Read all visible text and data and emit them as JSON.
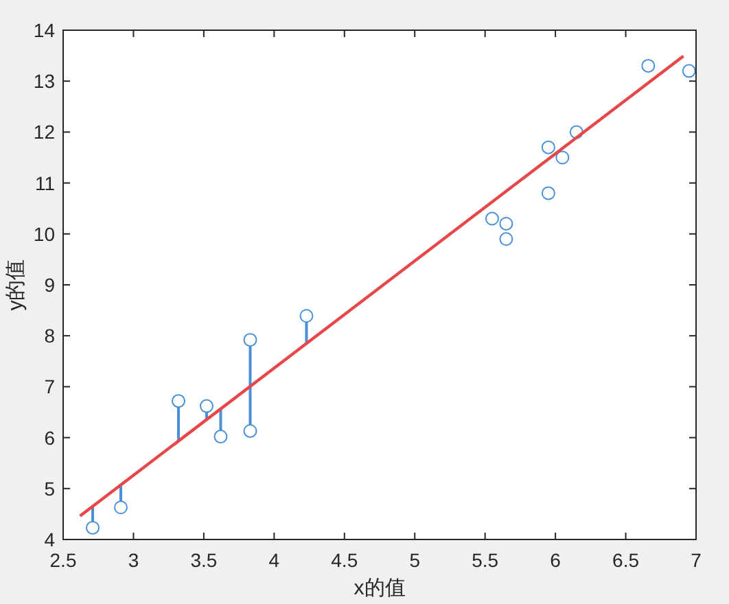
{
  "chart_data": {
    "type": "scatter",
    "xlabel": "x的值",
    "ylabel": "y的值",
    "xlim": [
      2.5,
      7
    ],
    "ylim": [
      4,
      14
    ],
    "xticks": [
      2.5,
      3,
      3.5,
      4,
      4.5,
      5,
      5.5,
      6,
      6.5,
      7
    ],
    "yticks": [
      4,
      5,
      6,
      7,
      8,
      9,
      10,
      11,
      12,
      13,
      14
    ],
    "series": [
      {
        "type": "scatter",
        "marker": "circle",
        "color": "#4a90d9",
        "x": [
          2.71,
          2.91,
          3.32,
          3.52,
          3.62,
          3.83,
          3.83,
          4.23,
          5.55,
          5.65,
          5.65,
          5.95,
          5.95,
          6.05,
          6.15,
          6.66,
          6.95
        ],
        "values": [
          4.23,
          4.63,
          6.72,
          6.62,
          6.02,
          7.92,
          6.13,
          8.39,
          10.3,
          10.2,
          9.9,
          10.8,
          11.7,
          11.5,
          12.0,
          13.3,
          13.2
        ],
        "errors": [
          [
            4.23,
            4.65
          ],
          [
            4.63,
            5.07
          ],
          [
            5.93,
            6.72
          ],
          [
            6.35,
            6.62
          ],
          [
            6.02,
            6.57
          ],
          [
            7.01,
            7.92
          ],
          [
            6.13,
            7.01
          ],
          [
            7.85,
            8.39
          ],
          null,
          null,
          null,
          null,
          null,
          null,
          null,
          null,
          null
        ]
      },
      {
        "type": "line",
        "color": "#e8474a",
        "x": [
          2.62,
          6.91
        ],
        "values": [
          4.46,
          13.49
        ]
      }
    ]
  }
}
